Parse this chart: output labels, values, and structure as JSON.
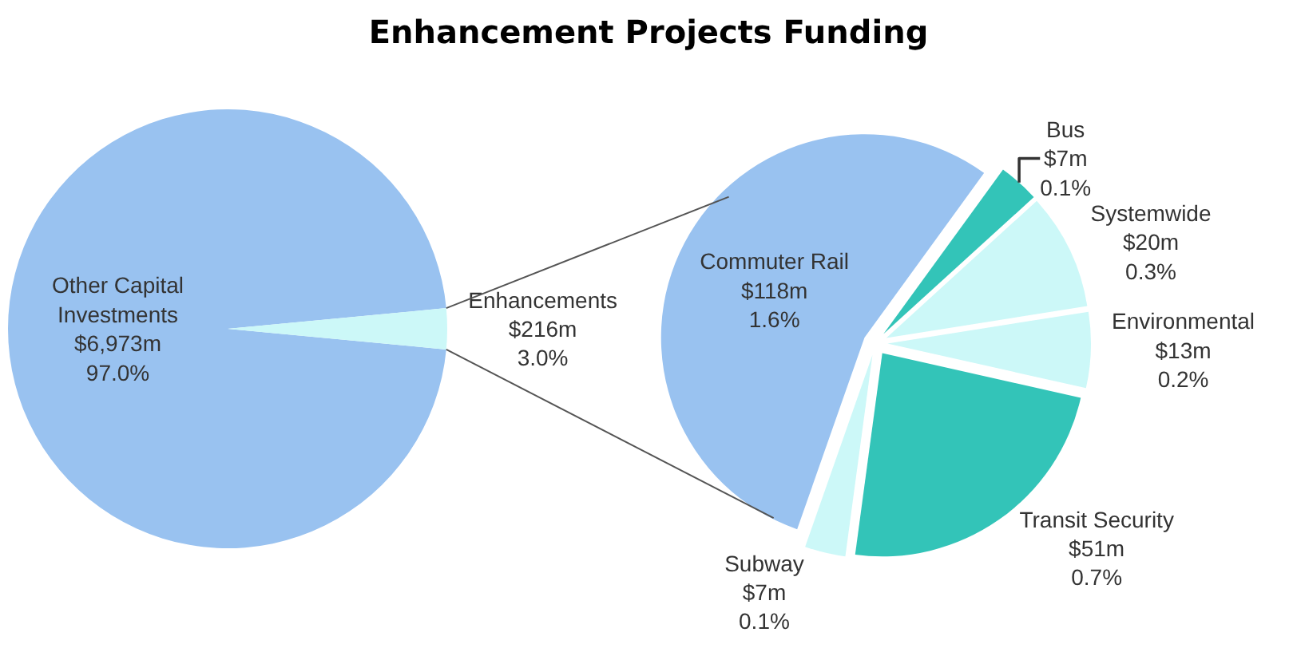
{
  "chart_data": [
    {
      "type": "pie",
      "title": "Enhancement Projects Funding",
      "categories": [
        "Other Capital Investments",
        "Enhancements"
      ],
      "values": [
        6973,
        216
      ],
      "value_labels": [
        "$6,973m",
        "$216m"
      ],
      "colors": [
        "#99c2f0",
        "#ccf8f8"
      ],
      "annotations": [
        {
          "text": "97.0%",
          "x": "Other Capital Investments"
        },
        {
          "text": "3.0%",
          "x": "Enhancements"
        }
      ]
    },
    {
      "type": "pie",
      "categories": [
        "Commuter Rail",
        "Bus",
        "Systemwide",
        "Environmental",
        "Transit Security",
        "Subway"
      ],
      "values": [
        118,
        7,
        20,
        13,
        51,
        7
      ],
      "value_labels": [
        "$118m",
        "$7m",
        "$20m",
        "$13m",
        "$51m",
        "$7m"
      ],
      "colors": [
        "#99c2f0",
        "#33c4b8",
        "#ccf8f8",
        "#ccf8f8",
        "#33c4b8",
        "#ccf8f8"
      ],
      "annotations": [
        {
          "text": "1.6%",
          "x": "Commuter Rail"
        },
        {
          "text": "0.1%",
          "x": "Bus"
        },
        {
          "text": "0.3%",
          "x": "Systemwide"
        },
        {
          "text": "0.2%",
          "x": "Environmental"
        },
        {
          "text": "0.7%",
          "x": "Transit Security"
        },
        {
          "text": "0.1%",
          "x": "Subway"
        }
      ]
    }
  ]
}
